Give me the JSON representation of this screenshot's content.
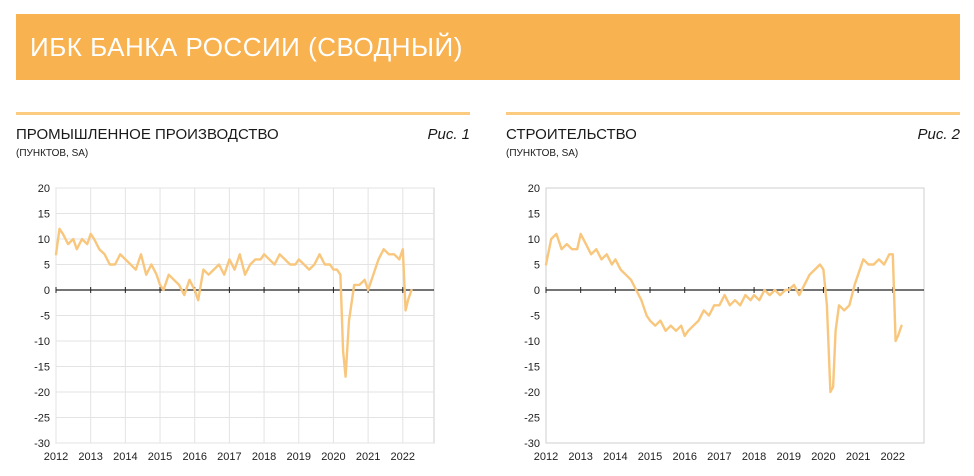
{
  "header": {
    "title": "ИБК БАНКА РОССИИ (СВОДНЫЙ)",
    "color": "#F8B24F"
  },
  "panels": [
    {
      "title": "ПРОМЫШЛЕННОЕ ПРОИЗВОДСТВО",
      "subtitle": "(ПУНКТОВ, SA)",
      "fig": "Рис. 1"
    },
    {
      "title": "СТРОИТЕЛЬСТВО",
      "subtitle": "(ПУНКТОВ, SA)",
      "fig": "Рис. 2"
    }
  ],
  "chart_data": [
    {
      "type": "line",
      "title": "ПРОМЫШЛЕННОЕ ПРОИЗВОДСТВО",
      "xlabel": "",
      "ylabel": "",
      "ylim": [
        -30,
        20
      ],
      "yticks": [
        "20",
        "15",
        "10",
        "5",
        "0",
        "-5",
        "-10",
        "-15",
        "-20",
        "-25",
        "-30"
      ],
      "xticks": [
        "2012",
        "2013",
        "2014",
        "2015",
        "2016",
        "2017",
        "2018",
        "2019",
        "2020",
        "2021",
        "2022"
      ],
      "grid": true,
      "color": "#F8C77D",
      "series": [
        {
          "x": [
            2012.0,
            2012.1,
            2012.2,
            2012.35,
            2012.5,
            2012.6,
            2012.75,
            2012.9,
            2013.0,
            2013.1,
            2013.25,
            2013.4,
            2013.55,
            2013.7,
            2013.85,
            2014.0,
            2014.15,
            2014.3,
            2014.45,
            2014.6,
            2014.75,
            2014.9,
            2015.0,
            2015.1,
            2015.25,
            2015.4,
            2015.55,
            2015.7,
            2015.85,
            2016.0,
            2016.1,
            2016.25,
            2016.4,
            2016.55,
            2016.7,
            2016.85,
            2017.0,
            2017.15,
            2017.3,
            2017.45,
            2017.6,
            2017.75,
            2017.9,
            2018.0,
            2018.15,
            2018.3,
            2018.45,
            2018.6,
            2018.75,
            2018.9,
            2019.0,
            2019.15,
            2019.3,
            2019.45,
            2019.6,
            2019.75,
            2019.9,
            2020.0,
            2020.1,
            2020.2,
            2020.28,
            2020.35,
            2020.45,
            2020.6,
            2020.75,
            2020.9,
            2021.0,
            2021.15,
            2021.3,
            2021.45,
            2021.6,
            2021.75,
            2021.9,
            2022.0,
            2022.08,
            2022.15,
            2022.25
          ],
          "y": [
            7,
            12,
            11,
            9,
            10,
            8,
            10,
            9,
            11,
            10,
            8,
            7,
            5,
            5,
            7,
            6,
            5,
            4,
            7,
            3,
            5,
            3,
            1,
            0,
            3,
            2,
            1,
            -1,
            2,
            0,
            -2,
            4,
            3,
            4,
            5,
            3,
            6,
            4,
            7,
            3,
            5,
            6,
            6,
            7,
            6,
            5,
            7,
            6,
            5,
            5,
            6,
            5,
            4,
            5,
            7,
            5,
            5,
            4,
            4,
            3,
            -12,
            -17,
            -6,
            1,
            1,
            2,
            0,
            3,
            6,
            8,
            7,
            7,
            6,
            8,
            -4,
            -2,
            0
          ]
        }
      ]
    },
    {
      "type": "line",
      "title": "СТРОИТЕЛЬСТВО",
      "xlabel": "",
      "ylabel": "",
      "ylim": [
        -30,
        20
      ],
      "yticks": [
        "20",
        "15",
        "10",
        "5",
        "0",
        "-5",
        "-10",
        "-15",
        "-20",
        "-25",
        "-30"
      ],
      "xticks": [
        "2012",
        "2013",
        "2014",
        "2015",
        "2016",
        "2017",
        "2018",
        "2019",
        "2020",
        "2021",
        "2022"
      ],
      "grid": false,
      "color": "#F8C77D",
      "series": [
        {
          "x": [
            2012.0,
            2012.15,
            2012.3,
            2012.45,
            2012.6,
            2012.75,
            2012.9,
            2013.0,
            2013.15,
            2013.3,
            2013.45,
            2013.6,
            2013.75,
            2013.9,
            2014.0,
            2014.15,
            2014.3,
            2014.45,
            2014.6,
            2014.75,
            2014.9,
            2015.0,
            2015.15,
            2015.3,
            2015.45,
            2015.6,
            2015.75,
            2015.9,
            2016.0,
            2016.1,
            2016.25,
            2016.4,
            2016.55,
            2016.7,
            2016.85,
            2017.0,
            2017.15,
            2017.3,
            2017.45,
            2017.6,
            2017.75,
            2017.9,
            2018.0,
            2018.15,
            2018.3,
            2018.45,
            2018.6,
            2018.75,
            2018.9,
            2019.0,
            2019.15,
            2019.3,
            2019.45,
            2019.6,
            2019.75,
            2019.9,
            2020.0,
            2020.1,
            2020.2,
            2020.28,
            2020.35,
            2020.45,
            2020.6,
            2020.75,
            2020.9,
            2021.0,
            2021.15,
            2021.3,
            2021.45,
            2021.6,
            2021.75,
            2021.9,
            2022.0,
            2022.08,
            2022.15,
            2022.25
          ],
          "y": [
            5,
            10,
            11,
            8,
            9,
            8,
            8,
            11,
            9,
            7,
            8,
            6,
            7,
            5,
            6,
            4,
            3,
            2,
            0,
            -2,
            -5,
            -6,
            -7,
            -6,
            -8,
            -7,
            -8,
            -7,
            -9,
            -8,
            -7,
            -6,
            -4,
            -5,
            -3,
            -3,
            -1,
            -3,
            -2,
            -3,
            -1,
            -2,
            -1,
            -2,
            0,
            -1,
            0,
            -1,
            0,
            0,
            1,
            -1,
            1,
            3,
            4,
            5,
            4,
            -3,
            -20,
            -19,
            -8,
            -3,
            -4,
            -3,
            1,
            3,
            6,
            5,
            5,
            6,
            5,
            7,
            7,
            -10,
            -9,
            -7
          ]
        }
      ]
    }
  ]
}
